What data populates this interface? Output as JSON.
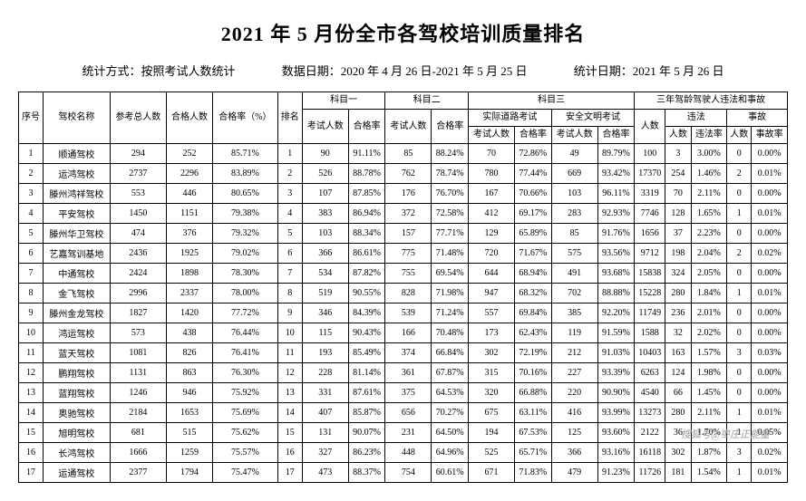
{
  "title": "2021 年 5 月份全市各驾校培训质量排名",
  "subtitle": {
    "method": "统计方式：按照考试人数统计",
    "dataPeriod": "数据日期：2020 年 4 月 26 日-2021 年 5 月 25 日",
    "statDate": "统计日期：2021 年 5 月 26 日"
  },
  "headers": {
    "seq": "序号",
    "name": "驾校名称",
    "total": "参考总人数",
    "pass": "合格人数",
    "passRate": "合格率（%）",
    "rank": "排名",
    "k1": "科目一",
    "k2": "科目二",
    "k3": "科目三",
    "three": "三年驾龄驾驶人违法和事故",
    "examNum": "考试人数",
    "passRateS": "合格率",
    "road": "实际道路考试",
    "safe": "安全文明考试",
    "people": "人数",
    "illegal": "违法",
    "illegalRate": "违法率",
    "accident": "事故",
    "accidentRate": "事故率"
  },
  "rows": [
    {
      "seq": 1,
      "name": "顺通驾校",
      "total": 294,
      "pass": 252,
      "rate": "85.71%",
      "rank": 1,
      "k1n": 90,
      "k1r": "91.11%",
      "k2n": 85,
      "k2r": "88.24%",
      "k3rn": 70,
      "k3rr": "72.86%",
      "k3sn": 49,
      "k3sr": "89.79%",
      "p": 100,
      "iln": 3,
      "ilr": "3.00%",
      "acn": 0,
      "acr": "0.00%"
    },
    {
      "seq": 2,
      "name": "运鸿驾校",
      "total": 2737,
      "pass": 2296,
      "rate": "83.89%",
      "rank": 2,
      "k1n": 526,
      "k1r": "88.78%",
      "k2n": 762,
      "k2r": "78.74%",
      "k3rn": 780,
      "k3rr": "77.44%",
      "k3sn": 669,
      "k3sr": "93.42%",
      "p": 17370,
      "iln": 254,
      "ilr": "1.46%",
      "acn": 2,
      "acr": "0.01%"
    },
    {
      "seq": 3,
      "name": "滕州鸿祥驾校",
      "total": 553,
      "pass": 446,
      "rate": "80.65%",
      "rank": 3,
      "k1n": 107,
      "k1r": "87.85%",
      "k2n": 176,
      "k2r": "76.70%",
      "k3rn": 167,
      "k3rr": "70.66%",
      "k3sn": 103,
      "k3sr": "96.11%",
      "p": 3319,
      "iln": 70,
      "ilr": "2.11%",
      "acn": 0,
      "acr": "0.00%"
    },
    {
      "seq": 4,
      "name": "平安驾校",
      "total": 1450,
      "pass": 1151,
      "rate": "79.38%",
      "rank": 4,
      "k1n": 383,
      "k1r": "86.94%",
      "k2n": 372,
      "k2r": "72.58%",
      "k3rn": 412,
      "k3rr": "69.17%",
      "k3sn": 283,
      "k3sr": "92.93%",
      "p": 7746,
      "iln": 128,
      "ilr": "1.65%",
      "acn": 1,
      "acr": "0.01%"
    },
    {
      "seq": 5,
      "name": "滕州华卫驾校",
      "total": 474,
      "pass": 376,
      "rate": "79.32%",
      "rank": 5,
      "k1n": 103,
      "k1r": "88.34%",
      "k2n": 157,
      "k2r": "77.71%",
      "k3rn": 129,
      "k3rr": "65.89%",
      "k3sn": 85,
      "k3sr": "91.76%",
      "p": 1656,
      "iln": 37,
      "ilr": "2.23%",
      "acn": 0,
      "acr": "0.00%"
    },
    {
      "seq": 6,
      "name": "艺嘉驾训基地",
      "total": 2436,
      "pass": 1925,
      "rate": "79.02%",
      "rank": 6,
      "k1n": 366,
      "k1r": "86.61%",
      "k2n": 775,
      "k2r": "71.48%",
      "k3rn": 720,
      "k3rr": "71.67%",
      "k3sn": 575,
      "k3sr": "93.56%",
      "p": 9712,
      "iln": 198,
      "ilr": "2.04%",
      "acn": 2,
      "acr": "0.02%"
    },
    {
      "seq": 7,
      "name": "中通驾校",
      "total": 2424,
      "pass": 1898,
      "rate": "78.30%",
      "rank": 7,
      "k1n": 534,
      "k1r": "87.82%",
      "k2n": 755,
      "k2r": "69.54%",
      "k3rn": 644,
      "k3rr": "68.94%",
      "k3sn": 491,
      "k3sr": "93.68%",
      "p": 15838,
      "iln": 324,
      "ilr": "2.05%",
      "acn": 0,
      "acr": "0.00%"
    },
    {
      "seq": 8,
      "name": "金飞驾校",
      "total": 2996,
      "pass": 2337,
      "rate": "78.00%",
      "rank": 8,
      "k1n": 519,
      "k1r": "90.55%",
      "k2n": 828,
      "k2r": "71.98%",
      "k3rn": 947,
      "k3rr": "68.32%",
      "k3sn": 702,
      "k3sr": "88.88%",
      "p": 15228,
      "iln": 280,
      "ilr": "1.84%",
      "acn": 1,
      "acr": "0.01%"
    },
    {
      "seq": 9,
      "name": "滕州金龙驾校",
      "total": 1827,
      "pass": 1420,
      "rate": "77.72%",
      "rank": 9,
      "k1n": 346,
      "k1r": "84.39%",
      "k2n": 539,
      "k2r": "71.24%",
      "k3rn": 557,
      "k3rr": "69.84%",
      "k3sn": 385,
      "k3sr": "92.20%",
      "p": 11749,
      "iln": 236,
      "ilr": "2.01%",
      "acn": 0,
      "acr": "0.00%"
    },
    {
      "seq": 10,
      "name": "鸿运驾校",
      "total": 573,
      "pass": 438,
      "rate": "76.44%",
      "rank": 10,
      "k1n": 115,
      "k1r": "90.43%",
      "k2n": 166,
      "k2r": "70.48%",
      "k3rn": 173,
      "k3rr": "62.43%",
      "k3sn": 119,
      "k3sr": "91.59%",
      "p": 1588,
      "iln": 32,
      "ilr": "2.02%",
      "acn": 0,
      "acr": "0.00%"
    },
    {
      "seq": 11,
      "name": "蓝天驾校",
      "total": 1081,
      "pass": 826,
      "rate": "76.41%",
      "rank": 11,
      "k1n": 193,
      "k1r": "85.49%",
      "k2n": 374,
      "k2r": "66.84%",
      "k3rn": 302,
      "k3rr": "72.19%",
      "k3sn": 212,
      "k3sr": "91.03%",
      "p": 10403,
      "iln": 163,
      "ilr": "1.57%",
      "acn": 3,
      "acr": "0.03%"
    },
    {
      "seq": 12,
      "name": "鹏翔驾校",
      "total": 1131,
      "pass": 863,
      "rate": "76.30%",
      "rank": 12,
      "k1n": 228,
      "k1r": "81.14%",
      "k2n": 361,
      "k2r": "67.87%",
      "k3rn": 315,
      "k3rr": "70.16%",
      "k3sn": 227,
      "k3sr": "93.39%",
      "p": 6263,
      "iln": 124,
      "ilr": "1.98%",
      "acn": 0,
      "acr": "0.00%"
    },
    {
      "seq": 13,
      "name": "蓝翔驾校",
      "total": 1246,
      "pass": 946,
      "rate": "75.92%",
      "rank": 13,
      "k1n": 331,
      "k1r": "87.61%",
      "k2n": 375,
      "k2r": "64.53%",
      "k3rn": 320,
      "k3rr": "66.88%",
      "k3sn": 220,
      "k3sr": "90.90%",
      "p": 4540,
      "iln": 66,
      "ilr": "1.45%",
      "acn": 0,
      "acr": "0.00%"
    },
    {
      "seq": 14,
      "name": "奥驰驾校",
      "total": 2184,
      "pass": 1653,
      "rate": "75.69%",
      "rank": 14,
      "k1n": 407,
      "k1r": "85.87%",
      "k2n": 656,
      "k2r": "70.27%",
      "k3rn": 675,
      "k3rr": "63.11%",
      "k3sn": 416,
      "k3sr": "93.99%",
      "p": 13273,
      "iln": 280,
      "ilr": "2.11%",
      "acn": 1,
      "acr": "0.01%"
    },
    {
      "seq": 15,
      "name": "旭明驾校",
      "total": 681,
      "pass": 515,
      "rate": "75.62%",
      "rank": 15,
      "k1n": 131,
      "k1r": "90.07%",
      "k2n": 231,
      "k2r": "64.50%",
      "k3rn": 194,
      "k3rr": "67.53%",
      "k3sn": 125,
      "k3sr": "93.60%",
      "p": 2122,
      "iln": 36,
      "ilr": "1.70%",
      "acn": 1,
      "acr": "0.05%"
    },
    {
      "seq": 16,
      "name": "长鸿驾校",
      "total": 1666,
      "pass": 1259,
      "rate": "75.57%",
      "rank": 16,
      "k1n": 327,
      "k1r": "86.23%",
      "k2n": 448,
      "k2r": "64.96%",
      "k3rn": 525,
      "k3rr": "65.71%",
      "k3sn": 366,
      "k3sr": "93.16%",
      "p": 16118,
      "iln": 302,
      "ilr": "1.87%",
      "acn": 3,
      "acr": "0.02%"
    },
    {
      "seq": 17,
      "name": "运通驾校",
      "total": 2377,
      "pass": 1794,
      "rate": "75.47%",
      "rank": 17,
      "k1n": 473,
      "k1r": "88.37%",
      "k2n": 754,
      "k2r": "60.61%",
      "k3rn": 671,
      "k3rr": "71.83%",
      "k3sn": 479,
      "k3sr": "91.23%",
      "p": 11726,
      "iln": 181,
      "ilr": "1.54%",
      "acn": 1,
      "acr": "0.01%"
    }
  ],
  "watermark": "搜狐号@枣庄正能量"
}
